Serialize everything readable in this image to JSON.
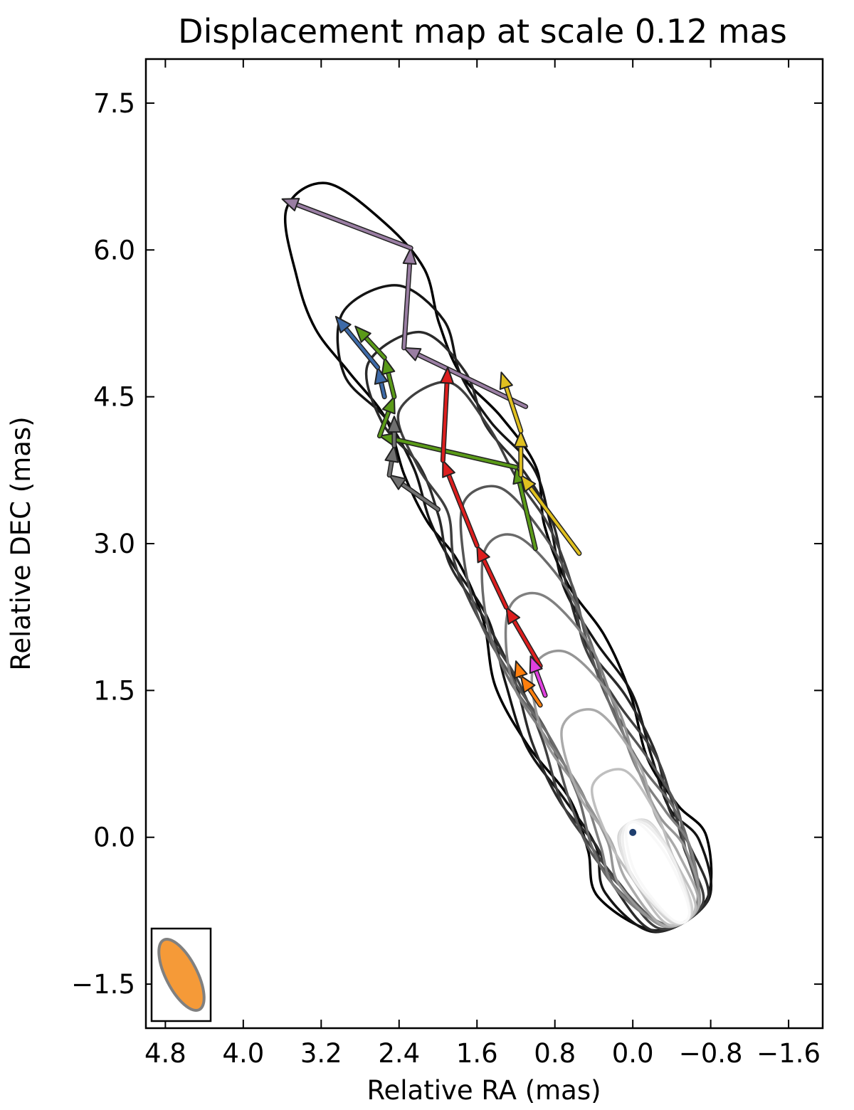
{
  "chart_data": {
    "type": "scatter",
    "title": "Displacement map at scale 0.12 mas",
    "xlabel": "Relative RA (mas)",
    "ylabel": "Relative DEC (mas)",
    "x_inverted": true,
    "xlim": [
      5.0,
      -1.95
    ],
    "ylim": [
      -1.95,
      7.95
    ],
    "xticks": [
      4.8,
      4.0,
      3.2,
      2.4,
      1.6,
      0.8,
      0.0,
      -0.8,
      -1.6
    ],
    "xtick_labels": [
      "4.8",
      "4.0",
      "3.2",
      "2.4",
      "1.6",
      "0.8",
      "0.0",
      "−0.8",
      "−1.6"
    ],
    "yticks": [
      7.5,
      6.0,
      4.5,
      3.0,
      1.5,
      0.0,
      -1.5
    ],
    "ytick_labels": [
      "7.5",
      "6.0",
      "4.5",
      "3.0",
      "1.5",
      "0.0",
      "−1.5"
    ],
    "grid": false,
    "beam": {
      "position": "bottom-left",
      "fill": "#f59a38",
      "stroke": "#808080",
      "major_mas": 0.75,
      "minor_mas": 0.3,
      "pa_deg": -27
    },
    "contours": {
      "colors": [
        "#000000",
        "#141414",
        "#2a2a2a",
        "#3f3f3f",
        "#555555",
        "#6a6a6a",
        "#808080",
        "#959595",
        "#aaaaaa",
        "#bfbfbf",
        "#d2d2d2",
        "#e2e2e2",
        "#efefef",
        "#f8f8f8"
      ],
      "ridge": [
        [
          -0.5,
          -0.8
        ],
        [
          -0.2,
          -0.3
        ],
        [
          0.0,
          0.1
        ],
        [
          0.25,
          0.6
        ],
        [
          0.55,
          1.2
        ],
        [
          0.85,
          1.8
        ],
        [
          1.1,
          2.4
        ],
        [
          1.35,
          3.0
        ],
        [
          1.55,
          3.5
        ],
        [
          1.85,
          4.0
        ],
        [
          2.15,
          4.5
        ],
        [
          2.45,
          5.0
        ],
        [
          2.7,
          5.5
        ],
        [
          3.0,
          6.0
        ],
        [
          3.35,
          6.55
        ]
      ]
    },
    "series": [
      {
        "color": "#9a7ea3",
        "points": [
          [
            1.1,
            4.4
          ],
          [
            2.35,
            5.0
          ],
          [
            2.28,
            6.02
          ],
          [
            3.6,
            6.52
          ]
        ]
      },
      {
        "color": "#3d6aa8",
        "points": [
          [
            2.55,
            4.5
          ],
          [
            2.62,
            4.8
          ],
          [
            3.05,
            5.32
          ]
        ]
      },
      {
        "color": "#5a9a18",
        "points": [
          [
            1.0,
            2.95
          ],
          [
            1.2,
            3.78
          ],
          [
            2.6,
            4.1
          ],
          [
            2.45,
            4.5
          ],
          [
            2.55,
            4.9
          ],
          [
            2.85,
            5.22
          ]
        ]
      },
      {
        "color": "#e0c020",
        "points": [
          [
            0.55,
            2.9
          ],
          [
            1.15,
            3.7
          ],
          [
            1.15,
            4.15
          ],
          [
            1.35,
            4.75
          ]
        ]
      },
      {
        "color": "#dd1e1e",
        "points": [
          [
            0.95,
            1.75
          ],
          [
            1.3,
            2.35
          ],
          [
            1.6,
            2.98
          ],
          [
            1.95,
            3.85
          ],
          [
            1.9,
            4.8
          ]
        ]
      },
      {
        "color": "#707070",
        "points": [
          [
            2.0,
            3.35
          ],
          [
            2.5,
            3.7
          ],
          [
            2.45,
            4.0
          ],
          [
            2.45,
            4.3
          ]
        ]
      },
      {
        "color": "#ff7f0e",
        "points": [
          [
            0.95,
            1.35
          ],
          [
            1.15,
            1.65
          ],
          [
            1.2,
            1.8
          ]
        ]
      },
      {
        "color": "#e040e0",
        "points": [
          [
            0.9,
            1.45
          ],
          [
            1.05,
            1.85
          ]
        ]
      }
    ]
  }
}
